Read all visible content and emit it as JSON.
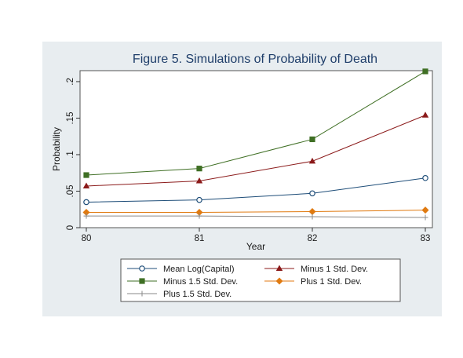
{
  "chart_data": {
    "type": "line",
    "title": "Figure 5.  Simulations of Probability of Death",
    "xlabel": "Year",
    "ylabel": "Probability",
    "x": [
      80,
      81,
      82,
      83
    ],
    "x_tick_labels": [
      "80",
      "81",
      "82",
      "83"
    ],
    "y_ticks": [
      0,
      0.05,
      0.1,
      0.15,
      0.2
    ],
    "y_tick_labels": [
      "0",
      ".05",
      ".1",
      ".15",
      ".2"
    ],
    "xlim": [
      80,
      83
    ],
    "ylim": [
      0,
      0.215
    ],
    "grid": false,
    "legend_position": "bottom",
    "series": [
      {
        "name": "Mean Log(Capital)",
        "values": [
          0.035,
          0.038,
          0.047,
          0.068
        ],
        "color": "#1f4e79",
        "marker": "hollow-circle"
      },
      {
        "name": "Minus 1 Std. Dev.",
        "values": [
          0.057,
          0.064,
          0.091,
          0.154
        ],
        "color": "#8b1a1a",
        "marker": "triangle"
      },
      {
        "name": "Minus 1.5 Std. Dev.",
        "values": [
          0.072,
          0.081,
          0.121,
          0.214
        ],
        "color": "#3f6f24",
        "marker": "square"
      },
      {
        "name": "Plus 1 Std. Dev.",
        "values": [
          0.021,
          0.021,
          0.022,
          0.024
        ],
        "color": "#e07a10",
        "marker": "diamond"
      },
      {
        "name": "Plus 1.5 Std. Dev.",
        "values": [
          0.016,
          0.016,
          0.015,
          0.014
        ],
        "color": "#8a8a8a",
        "marker": "plus"
      }
    ]
  }
}
